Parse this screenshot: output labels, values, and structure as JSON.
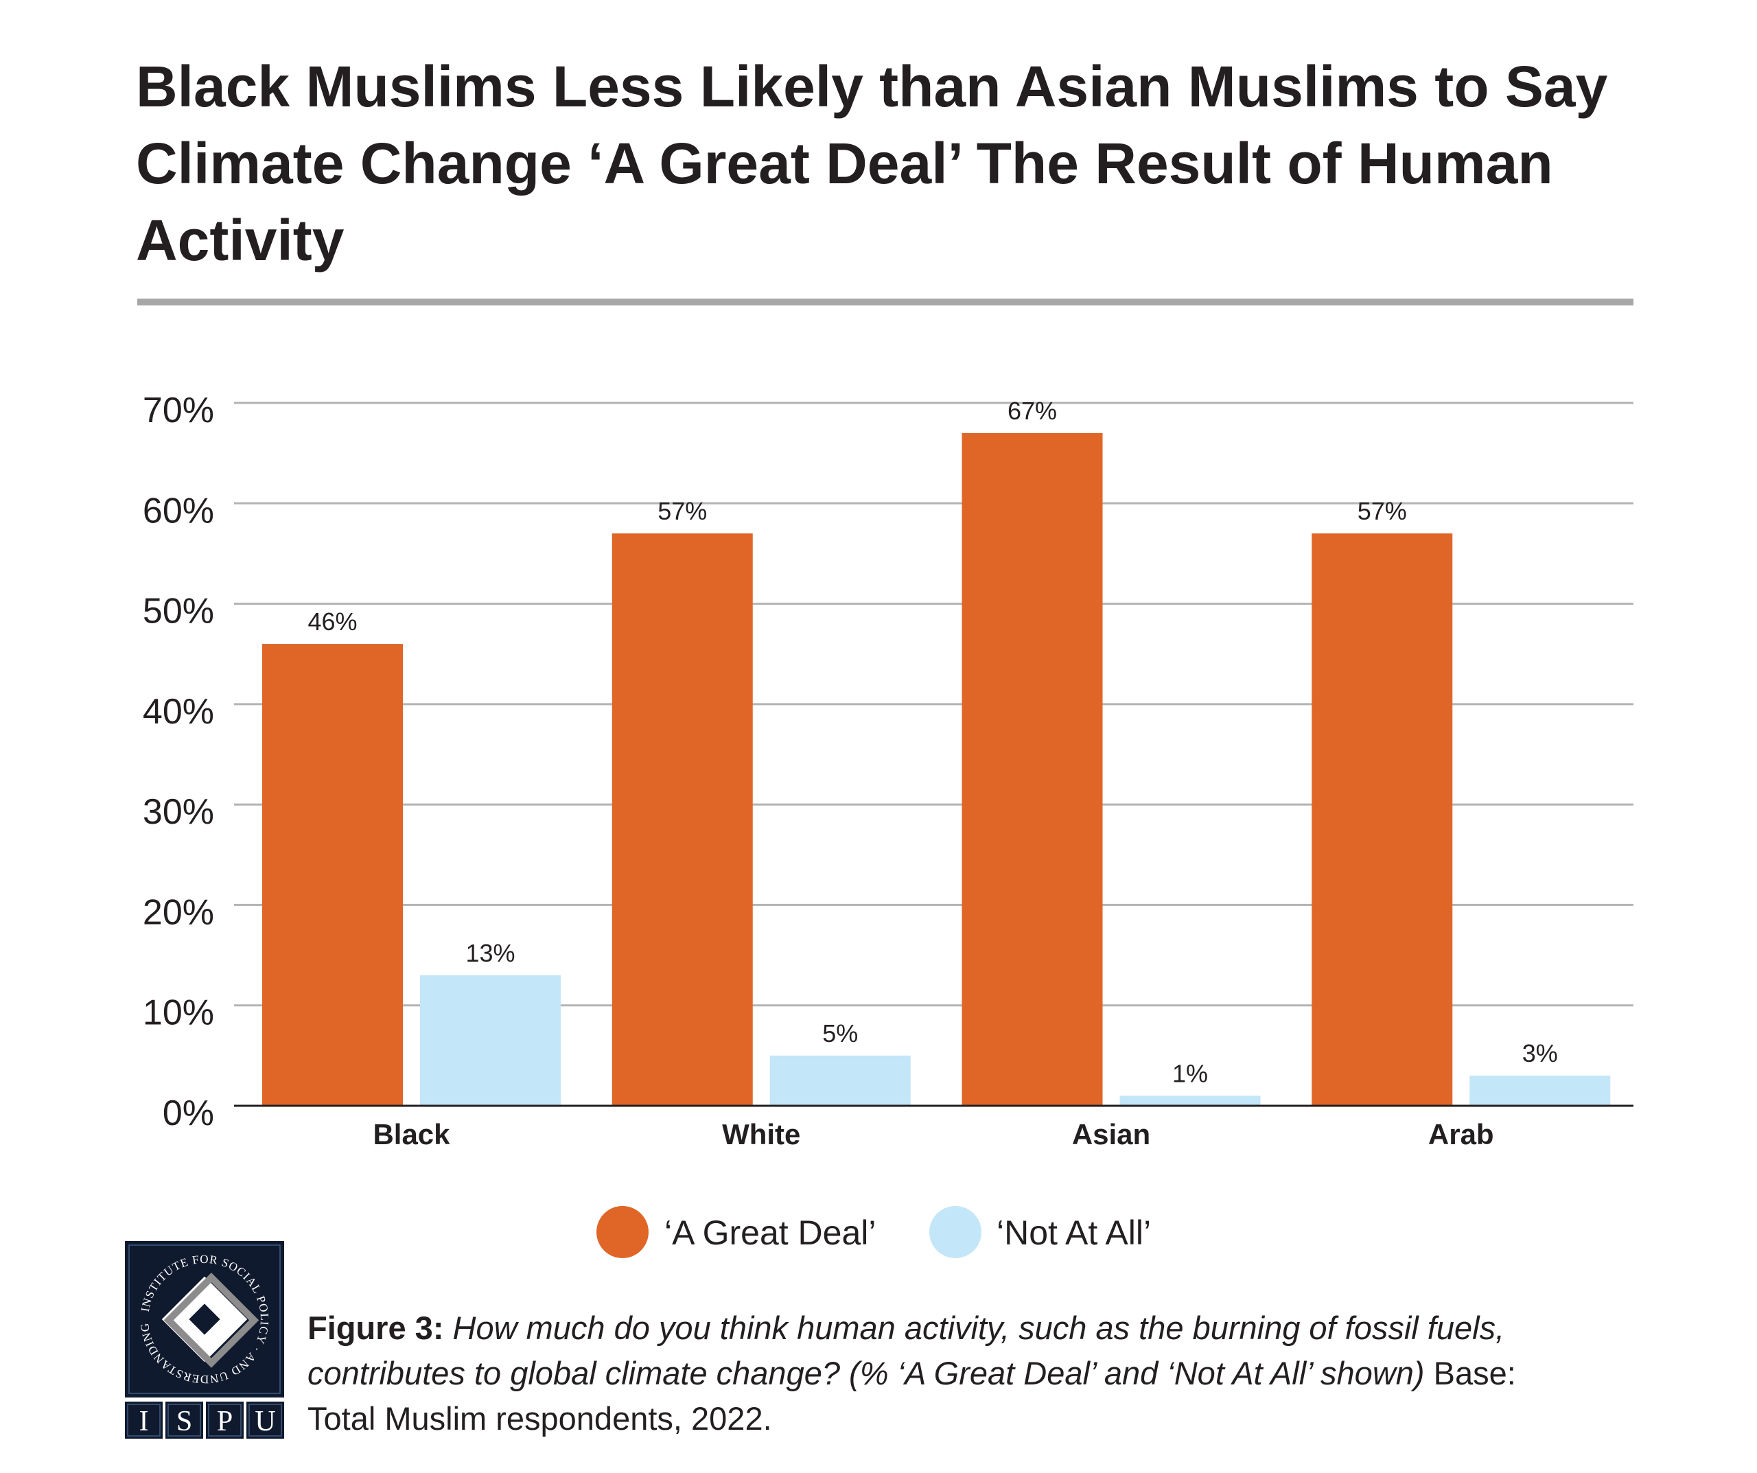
{
  "title": "Black Muslims Less Likely than Asian Muslims to Say Climate Change ‘A Great Deal’ The Result of Human Activity",
  "chart_data": {
    "type": "bar",
    "title": "Black Muslims Less Likely than Asian Muslims to Say Climate Change ‘A Great Deal’ The Result of Human Activity",
    "categories": [
      "Black",
      "White",
      "Asian",
      "Arab"
    ],
    "series": [
      {
        "name": "‘A Great Deal’",
        "values": [
          46,
          57,
          67,
          57
        ],
        "labels": [
          "46%",
          "57%",
          "67%",
          "57%"
        ],
        "color": "#E06628"
      },
      {
        "name": "‘Not At All’",
        "values": [
          13,
          5,
          1,
          3
        ],
        "labels": [
          "13%",
          "5%",
          "1%",
          "3%"
        ],
        "color": "#C3E6F8"
      }
    ],
    "yticks": [
      "0%",
      "10%",
      "20%",
      "30%",
      "40%",
      "50%",
      "60%",
      "70%"
    ],
    "ylim": [
      0,
      70
    ],
    "xlabel": "",
    "ylabel": "",
    "grid": true,
    "legend": "bottom"
  },
  "caption": {
    "label": "Figure 3:",
    "question": " How much do you think human activity, such as the burning of fossil fuels, contributes to global climate change? (% ‘A Great Deal’ and ‘Not At All’ shown)",
    "base": " Base: Total Muslim respondents, 2022."
  },
  "logo": {
    "ring_text": "INSTITUTE FOR SOCIAL POLICY AND UNDERSTANDING",
    "letters": [
      "I",
      "S",
      "P",
      "U"
    ],
    "colors": {
      "navy": "#101a2e",
      "gray": "#8c8c8c"
    }
  }
}
